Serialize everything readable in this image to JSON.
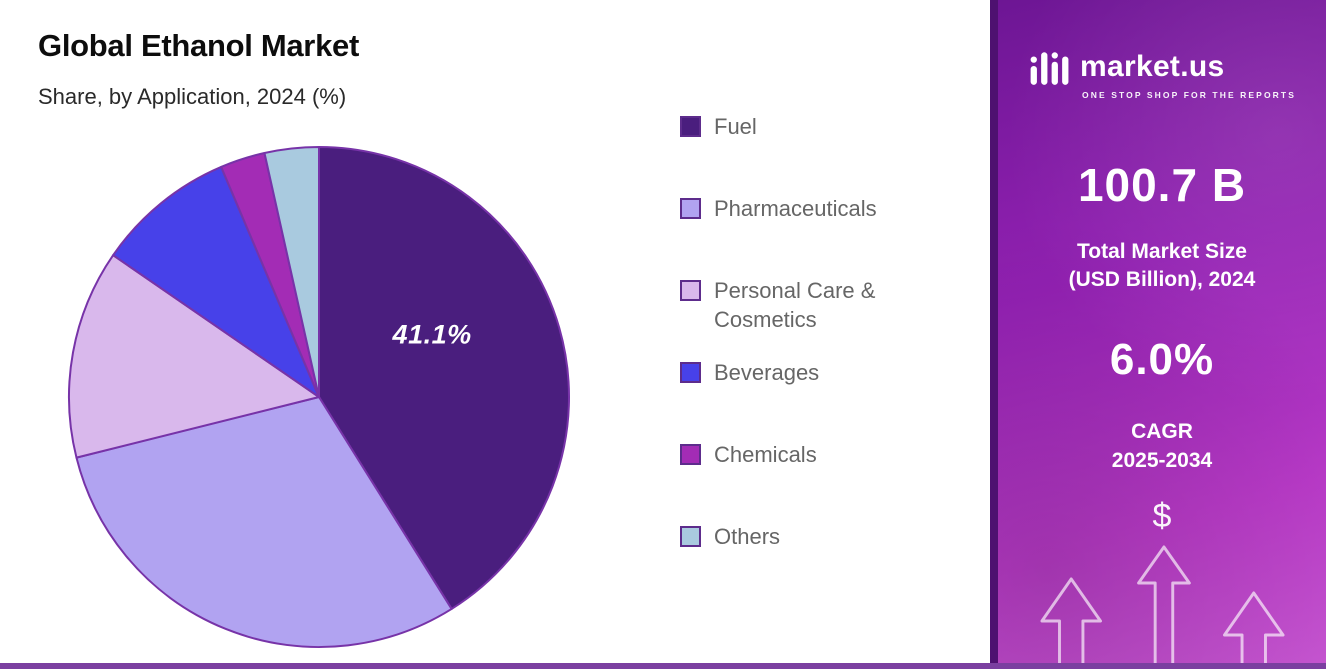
{
  "page": {
    "title": "Global Ethanol Market",
    "subtitle": "Share, by Application, 2024 (%)"
  },
  "chart_data": {
    "type": "pie",
    "title": "Global Ethanol Market",
    "subtitle": "Share, by Application, 2024 (%)",
    "unit": "%",
    "start_angle_deg": 0,
    "direction": "clockwise",
    "legend_position": "right",
    "outline_color": "#7733a8",
    "labeled_slice": {
      "label": "Fuel",
      "text": "41.1%"
    },
    "slices": [
      {
        "label": "Fuel",
        "value": 41.1,
        "color": "#4a1e7e"
      },
      {
        "label": "Pharmaceuticals",
        "value": 30.0,
        "color": "#b1a3f1"
      },
      {
        "label": "Personal Care & Cosmetics",
        "value": 13.5,
        "color": "#d9b8ec"
      },
      {
        "label": "Beverages",
        "value": 9.0,
        "color": "#4741e9"
      },
      {
        "label": "Chemicals",
        "value": 2.9,
        "color": "#a32cb5"
      },
      {
        "label": "Others",
        "value": 3.5,
        "color": "#a9cadf"
      }
    ]
  },
  "side_panel": {
    "logo_text": "market.us",
    "logo_tagline": "ONE STOP SHOP FOR THE REPORTS",
    "market_size_value": "100.7 B",
    "market_size_label_line1": "Total Market Size",
    "market_size_label_line2": "(USD Billion), 2024",
    "cagr_value": "6.0%",
    "cagr_label_line1": "CAGR",
    "cagr_label_line2": "2025-2034",
    "dollar_symbol": "$"
  },
  "colors": {
    "bottom_accent": "#7b3fa0",
    "panel_border": "#4e1170",
    "legend_swatch_border": "#5d2c8c",
    "legend_text": "#666666"
  }
}
